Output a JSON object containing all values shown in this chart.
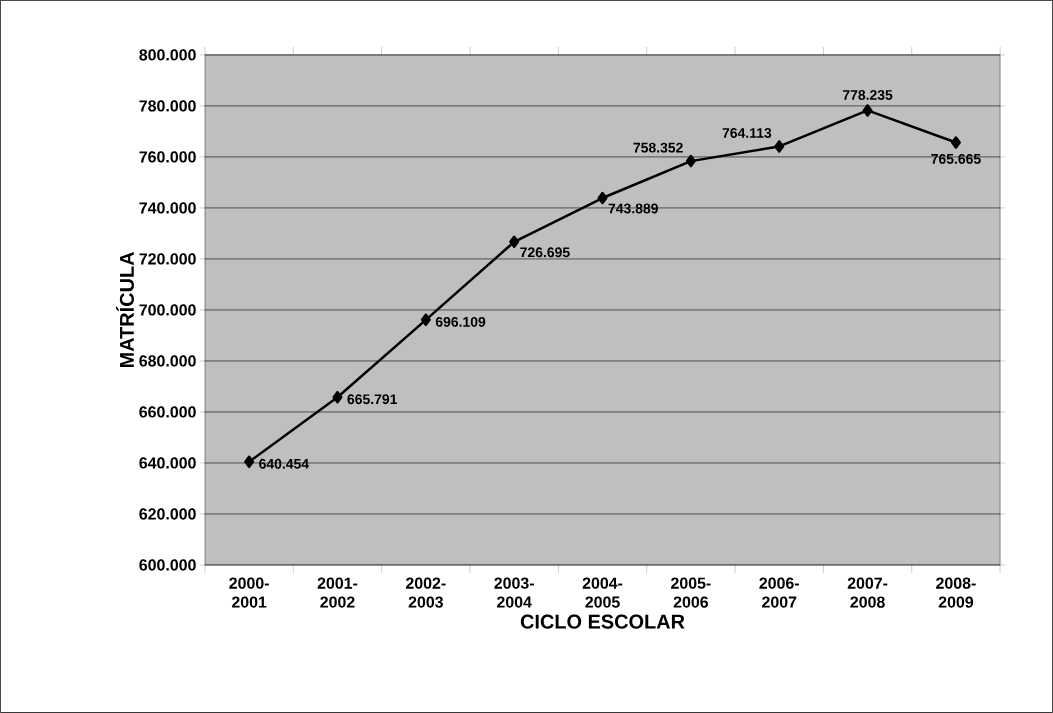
{
  "chart_data": {
    "type": "line",
    "xlabel": "CICLO ESCOLAR",
    "ylabel": "MATRÍCULA",
    "categories": [
      "2000-2001",
      "2001-2002",
      "2002-2003",
      "2003-2004",
      "2004-2005",
      "2005-2006",
      "2006-2007",
      "2007-2008",
      "2008-2009"
    ],
    "values": [
      640454,
      665791,
      696109,
      726695,
      743889,
      758352,
      764113,
      778235,
      765665
    ],
    "value_labels": [
      "640.454",
      "665.791",
      "696.109",
      "726.695",
      "743.889",
      "758.352",
      "764.113",
      "778.235",
      "765.665"
    ],
    "color": "#000000",
    "marker": "diamond",
    "line_style": "solid",
    "grid": "y",
    "ylim": [
      600000,
      800000
    ],
    "yticks": [
      {
        "value": 600000,
        "label": "600.000"
      },
      {
        "value": 620000,
        "label": "620.000"
      },
      {
        "value": 640000,
        "label": "640.000"
      },
      {
        "value": 660000,
        "label": "660.000"
      },
      {
        "value": 680000,
        "label": "680.000"
      },
      {
        "value": 700000,
        "label": "700.000"
      },
      {
        "value": 720000,
        "label": "720.000"
      },
      {
        "value": 740000,
        "label": "740.000"
      },
      {
        "value": 760000,
        "label": "760.000"
      },
      {
        "value": 780000,
        "label": "780.000"
      },
      {
        "value": 800000,
        "label": "800.000"
      }
    ]
  }
}
